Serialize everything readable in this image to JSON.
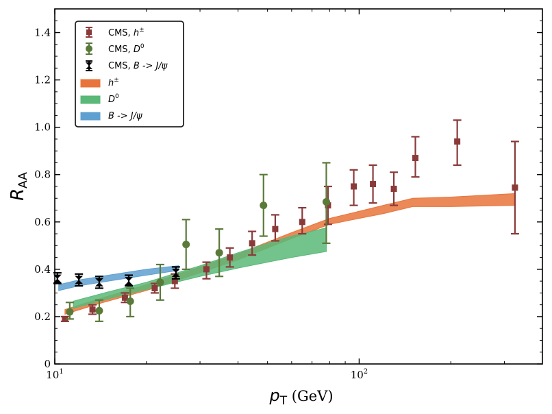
{
  "chart_data": {
    "type": "scatter",
    "title": "",
    "xlabel": "p",
    "xlabel_sub": "T",
    "xlabel_unit": " (GeV)",
    "ylabel": "R",
    "ylabel_sub": "AA",
    "xscale": "log",
    "xlim": [
      10,
      400
    ],
    "ylim": [
      0,
      1.5
    ],
    "x_ticks": [
      {
        "value": 10,
        "label": "10",
        "exp": "1"
      },
      {
        "value": 100,
        "label": "10",
        "exp": "2"
      }
    ],
    "y_ticks": [
      0,
      0.2,
      0.4,
      0.6,
      0.8,
      1.0,
      1.2,
      1.4
    ],
    "y_tick_labels": [
      "0",
      "0.2",
      "0.4",
      "0.6",
      "0.8",
      "1.0",
      "1.2",
      "1.4"
    ],
    "legend_position": "top-left",
    "series": [
      {
        "name": "CMS, ",
        "name_italic": "h",
        "name_sup": "±",
        "name_tail": "",
        "marker": "square",
        "color": "#8b3a3a",
        "points": [
          {
            "x": 10.8,
            "y": 0.19,
            "lo": 0.18,
            "hi": 0.2
          },
          {
            "x": 13.3,
            "y": 0.23,
            "lo": 0.21,
            "hi": 0.25
          },
          {
            "x": 17.0,
            "y": 0.28,
            "lo": 0.26,
            "hi": 0.3
          },
          {
            "x": 21.3,
            "y": 0.32,
            "lo": 0.3,
            "hi": 0.34
          },
          {
            "x": 24.8,
            "y": 0.35,
            "lo": 0.32,
            "hi": 0.38
          },
          {
            "x": 31.5,
            "y": 0.4,
            "lo": 0.36,
            "hi": 0.43
          },
          {
            "x": 37.6,
            "y": 0.45,
            "lo": 0.41,
            "hi": 0.49
          },
          {
            "x": 44.5,
            "y": 0.51,
            "lo": 0.46,
            "hi": 0.56
          },
          {
            "x": 53.0,
            "y": 0.57,
            "lo": 0.52,
            "hi": 0.63
          },
          {
            "x": 65.0,
            "y": 0.6,
            "lo": 0.55,
            "hi": 0.66
          },
          {
            "x": 79.0,
            "y": 0.67,
            "lo": 0.59,
            "hi": 0.75
          },
          {
            "x": 96.0,
            "y": 0.75,
            "lo": 0.67,
            "hi": 0.82
          },
          {
            "x": 111.0,
            "y": 0.76,
            "lo": 0.68,
            "hi": 0.84
          },
          {
            "x": 130.0,
            "y": 0.74,
            "lo": 0.67,
            "hi": 0.81
          },
          {
            "x": 153.0,
            "y": 0.87,
            "lo": 0.79,
            "hi": 0.96
          },
          {
            "x": 210.0,
            "y": 0.94,
            "lo": 0.84,
            "hi": 1.03
          },
          {
            "x": 325.0,
            "y": 0.745,
            "lo": 0.55,
            "hi": 0.94
          }
        ]
      },
      {
        "name": "CMS, ",
        "name_italic": "D",
        "name_sup": "0",
        "name_tail": "",
        "marker": "circle",
        "color": "#5a7a3a",
        "points": [
          {
            "x": 11.2,
            "y": 0.22,
            "lo": 0.19,
            "hi": 0.26
          },
          {
            "x": 14.0,
            "y": 0.225,
            "lo": 0.18,
            "hi": 0.27
          },
          {
            "x": 17.7,
            "y": 0.265,
            "lo": 0.2,
            "hi": 0.32
          },
          {
            "x": 22.2,
            "y": 0.345,
            "lo": 0.27,
            "hi": 0.42
          },
          {
            "x": 27.0,
            "y": 0.505,
            "lo": 0.4,
            "hi": 0.61
          },
          {
            "x": 34.7,
            "y": 0.47,
            "lo": 0.37,
            "hi": 0.57
          },
          {
            "x": 48.5,
            "y": 0.67,
            "lo": 0.54,
            "hi": 0.8
          },
          {
            "x": 78.0,
            "y": 0.685,
            "lo": 0.51,
            "hi": 0.85
          }
        ]
      },
      {
        "name": "CMS, ",
        "name_italic": "",
        "name_sup": "",
        "name_tail": "B -> J/ψ",
        "marker": "x",
        "color": "#000000",
        "points": [
          {
            "x": 10.2,
            "y": 0.36,
            "lo": 0.34,
            "hi": 0.385
          },
          {
            "x": 12.0,
            "y": 0.355,
            "lo": 0.33,
            "hi": 0.38
          },
          {
            "x": 14.0,
            "y": 0.345,
            "lo": 0.32,
            "hi": 0.37
          },
          {
            "x": 17.5,
            "y": 0.35,
            "lo": 0.33,
            "hi": 0.375
          },
          {
            "x": 25.0,
            "y": 0.385,
            "lo": 0.36,
            "hi": 0.41
          }
        ]
      }
    ],
    "bands": [
      {
        "name": "",
        "name_italic": "h",
        "name_sup": "±",
        "name_tail": "",
        "color": "#e8743b",
        "x": [
          10.8,
          14,
          20,
          30,
          40,
          50,
          60,
          80,
          100,
          120,
          150,
          200,
          325
        ],
        "lower": [
          0.21,
          0.255,
          0.31,
          0.385,
          0.44,
          0.49,
          0.53,
          0.59,
          0.615,
          0.635,
          0.665,
          0.665,
          0.67
        ],
        "upper": [
          0.23,
          0.275,
          0.335,
          0.41,
          0.465,
          0.515,
          0.555,
          0.615,
          0.645,
          0.67,
          0.7,
          0.705,
          0.72
        ]
      },
      {
        "name": "",
        "name_italic": "D",
        "name_sup": "0",
        "name_tail": "",
        "color": "#5ab878",
        "x": [
          11.5,
          15,
          20,
          30,
          40,
          50,
          60,
          78
        ],
        "lower": [
          0.235,
          0.275,
          0.315,
          0.37,
          0.405,
          0.43,
          0.45,
          0.475
        ],
        "upper": [
          0.265,
          0.305,
          0.345,
          0.415,
          0.47,
          0.51,
          0.54,
          0.575
        ]
      },
      {
        "name": "",
        "name_italic": "",
        "name_sup": "",
        "name_tail": "B -> J/ψ",
        "color": "#5fa0d0",
        "x": [
          10.3,
          12,
          15,
          20,
          25.5
        ],
        "lower": [
          0.31,
          0.33,
          0.35,
          0.375,
          0.395
        ],
        "upper": [
          0.335,
          0.355,
          0.375,
          0.4,
          0.415
        ]
      }
    ]
  }
}
